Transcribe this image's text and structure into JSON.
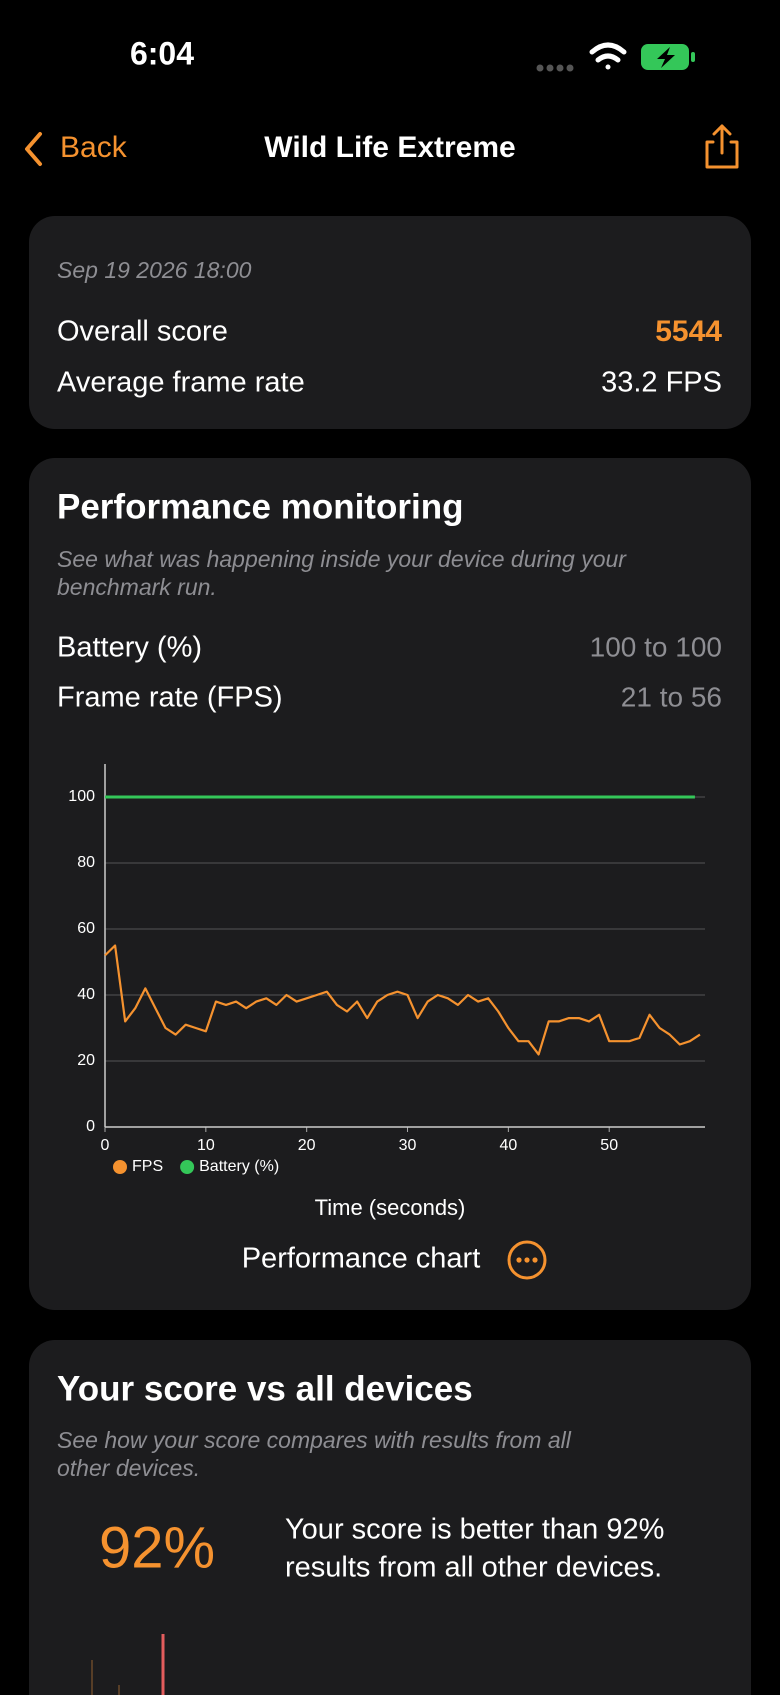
{
  "status_bar": {
    "time": "6:04"
  },
  "nav": {
    "back": "Back",
    "title": "Wild Life Extreme"
  },
  "summary": {
    "date": "Sep 19 2026 18:00",
    "rows": [
      [
        "Overall score",
        "5544"
      ],
      [
        "Average frame rate",
        "33.2 FPS"
      ]
    ]
  },
  "performance": {
    "title": "Performance monitoring",
    "subtitle": [
      "See what was happening inside your device during your",
      "benchmark run."
    ],
    "rows": [
      [
        "Battery (%)",
        "100 to 100"
      ],
      [
        "Frame rate (FPS)",
        "21 to 56"
      ]
    ],
    "chart": {
      "type": "line",
      "x_label": "Time (seconds)",
      "xlim": [
        0,
        59.5
      ],
      "xticks": [
        0,
        10,
        20,
        30,
        40,
        50
      ],
      "ylim": [
        0,
        110
      ],
      "yticks": [
        0,
        20,
        40,
        60,
        80,
        100
      ],
      "grid": true,
      "legend": "bottom",
      "series": [
        {
          "name": "FPS",
          "color": "#f5922f",
          "x": [
            0,
            1,
            2,
            3,
            4,
            5,
            6,
            7,
            8,
            9,
            10,
            11,
            12,
            13,
            14,
            15,
            16,
            17,
            18,
            19,
            20,
            21,
            22,
            23,
            24,
            25,
            26,
            27,
            28,
            29,
            30,
            31,
            32,
            33,
            34,
            35,
            36,
            37,
            38,
            39,
            40,
            41,
            42,
            43,
            44,
            45,
            46,
            47,
            48,
            49,
            50,
            51,
            52,
            53,
            54,
            55,
            56,
            57,
            58,
            59
          ],
          "values": [
            52,
            55,
            32,
            36,
            42,
            36,
            30,
            28,
            31,
            30,
            29,
            38,
            37,
            38,
            36,
            38,
            39,
            37,
            40,
            38,
            39,
            40,
            41,
            37,
            35,
            38,
            33,
            38,
            40,
            41,
            40,
            33,
            38,
            40,
            39,
            37,
            40,
            38,
            39,
            35,
            30,
            26,
            26,
            22,
            32,
            32,
            33,
            33,
            32,
            34,
            26,
            26,
            26,
            27,
            34,
            30,
            28,
            25,
            26,
            28
          ]
        },
        {
          "name": "Battery (%)",
          "color": "#34c759",
          "x": [
            0,
            58.5
          ],
          "values": [
            100,
            100
          ]
        }
      ]
    },
    "chart_button": "Performance chart"
  },
  "comparison": {
    "title": "Your score vs all devices",
    "subtitle": [
      "See how your score compares with results from all",
      "other devices."
    ],
    "percent": "92%",
    "text": [
      "Your score is better than 92%",
      "results from all other devices."
    ]
  }
}
